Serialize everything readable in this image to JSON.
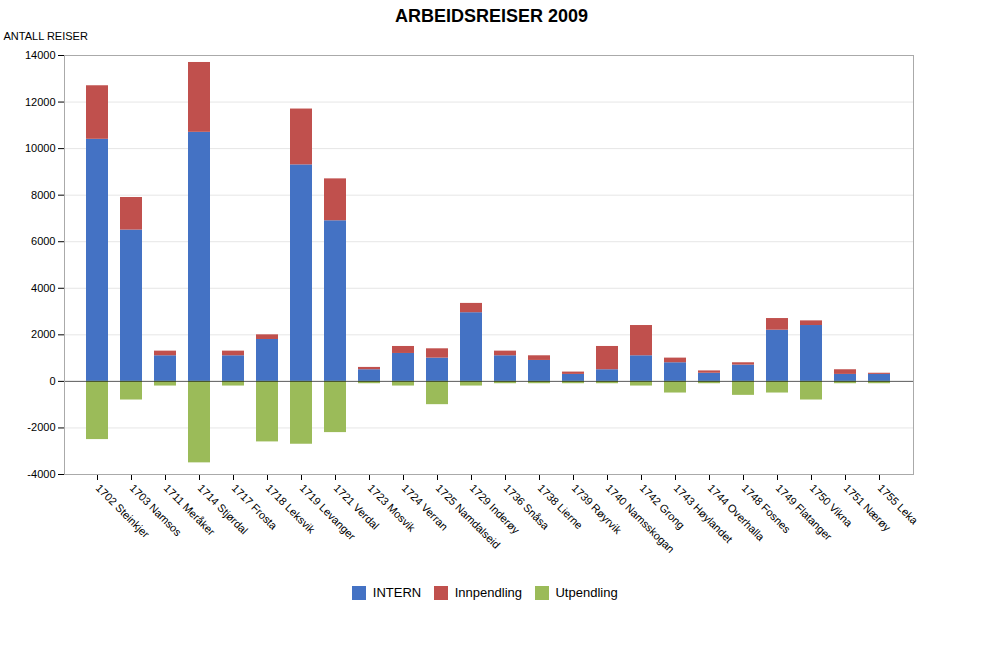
{
  "chart_data": {
    "type": "bar",
    "title": "ARBEIDSREISER 2009",
    "ylabel": "ANTALL REISER",
    "categories": [
      "1702 Steinkjer",
      "1703 Namsos",
      "1711 Meråker",
      "1714 Stjørdal",
      "1717 Frosta",
      "1718 Leksvik",
      "1719 Levanger",
      "1721 Verdal",
      "1723 Mosvik",
      "1724 Verran",
      "1725 Namdalseid",
      "1729 Inderøy",
      "1736 Snåsa",
      "1738 Lierne",
      "1739 Røyrvik",
      "1740 Namsskogan",
      "1742 Grong",
      "1743 Høylandet",
      "1744 Overhalla",
      "1748 Fosnes",
      "1749 Flatanger",
      "1750 Vikna",
      "1751 Nærøy",
      "1755 Leka"
    ],
    "series": [
      {
        "name": "INTERN",
        "color": "#4472C4",
        "values": [
          10400,
          6500,
          1100,
          10700,
          1100,
          1800,
          9300,
          6900,
          500,
          1200,
          1000,
          2950,
          1100,
          900,
          300,
          500,
          1100,
          800,
          350,
          700,
          2200,
          2400,
          300,
          300
        ]
      },
      {
        "name": "Innpendling",
        "color": "#C0504D",
        "values": [
          2300,
          1400,
          200,
          3000,
          200,
          200,
          2400,
          1800,
          100,
          300,
          400,
          400,
          200,
          200,
          100,
          1000,
          1300,
          200,
          100,
          100,
          500,
          200,
          200,
          50
        ]
      },
      {
        "name": "Utpendling",
        "color": "#9BBB59",
        "values": [
          -2500,
          -800,
          -200,
          -3500,
          -200,
          -2600,
          -2700,
          -2200,
          -100,
          -200,
          -1000,
          -200,
          -100,
          -100,
          -100,
          -100,
          -200,
          -500,
          -100,
          -600,
          -500,
          -800,
          -100,
          -100
        ]
      }
    ],
    "stacked": true,
    "ylim": [
      -4000,
      14000
    ],
    "yticks": [
      -4000,
      -2000,
      0,
      2000,
      4000,
      6000,
      8000,
      10000,
      12000,
      14000
    ],
    "grid": true,
    "legend": "bottom"
  }
}
